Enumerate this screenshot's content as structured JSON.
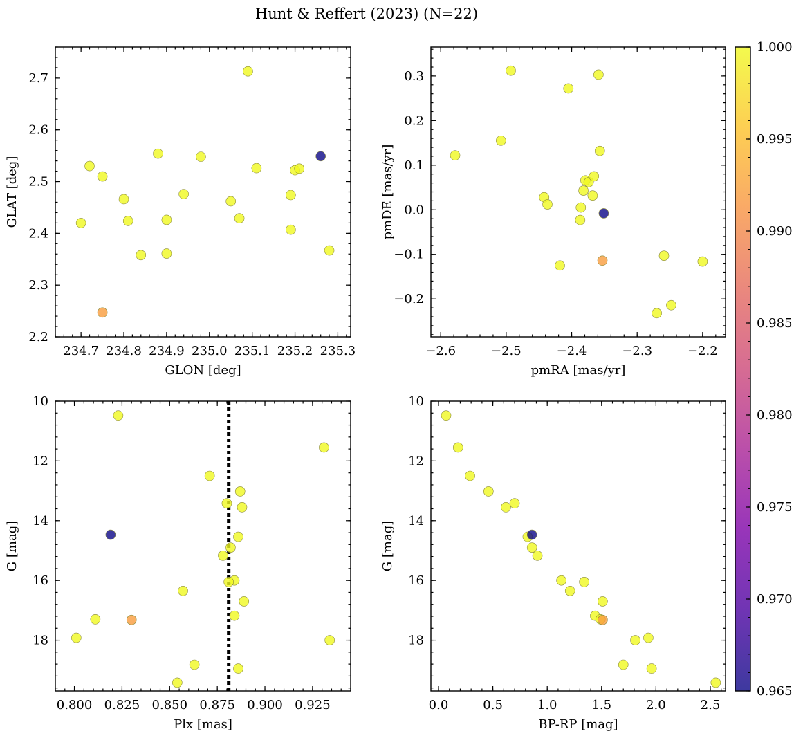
{
  "figure": {
    "title": "Hunt & Reffert (2023) (N=22)"
  },
  "colorbar": {
    "min": 0.965,
    "max": 1.0,
    "colormap": "plasma",
    "ticks": [
      0.965,
      0.97,
      0.975,
      0.98,
      0.985,
      0.99,
      0.995,
      1.0
    ],
    "tick_labels": [
      "0.965",
      "0.970",
      "0.975",
      "0.980",
      "0.985",
      "0.990",
      "0.995",
      "1.000"
    ]
  },
  "chart_data": [
    {
      "type": "scatter",
      "panel": "top-left",
      "xlabel": "GLON [deg]",
      "ylabel": "GLAT [deg]",
      "xlim": [
        234.64,
        235.33
      ],
      "ylim": [
        2.2,
        2.76
      ],
      "y_inverted": false,
      "xticks": [
        234.7,
        234.8,
        234.9,
        235.0,
        235.1,
        235.2,
        235.3
      ],
      "xtick_labels": [
        "234.7",
        "234.8",
        "234.9",
        "235.0",
        "235.1",
        "235.2",
        "235.3"
      ],
      "yticks": [
        2.2,
        2.3,
        2.4,
        2.5,
        2.6,
        2.7
      ],
      "ytick_labels": [
        "2.2",
        "2.3",
        "2.4",
        "2.5",
        "2.6",
        "2.7"
      ],
      "points": [
        {
          "x": 234.7,
          "y": 2.42,
          "c": 1.0
        },
        {
          "x": 234.72,
          "y": 2.53,
          "c": 1.0
        },
        {
          "x": 234.75,
          "y": 2.51,
          "c": 1.0
        },
        {
          "x": 234.75,
          "y": 2.247,
          "c": 0.992
        },
        {
          "x": 234.8,
          "y": 2.466,
          "c": 1.0
        },
        {
          "x": 234.81,
          "y": 2.424,
          "c": 1.0
        },
        {
          "x": 234.84,
          "y": 2.358,
          "c": 1.0
        },
        {
          "x": 234.88,
          "y": 2.554,
          "c": 1.0
        },
        {
          "x": 234.9,
          "y": 2.426,
          "c": 1.0
        },
        {
          "x": 234.9,
          "y": 2.361,
          "c": 1.0
        },
        {
          "x": 234.94,
          "y": 2.476,
          "c": 1.0
        },
        {
          "x": 234.98,
          "y": 2.548,
          "c": 1.0
        },
        {
          "x": 235.05,
          "y": 2.462,
          "c": 1.0
        },
        {
          "x": 235.07,
          "y": 2.429,
          "c": 1.0
        },
        {
          "x": 235.09,
          "y": 2.713,
          "c": 1.0
        },
        {
          "x": 235.11,
          "y": 2.526,
          "c": 1.0
        },
        {
          "x": 235.19,
          "y": 2.474,
          "c": 1.0
        },
        {
          "x": 235.19,
          "y": 2.407,
          "c": 1.0
        },
        {
          "x": 235.2,
          "y": 2.522,
          "c": 1.0
        },
        {
          "x": 235.21,
          "y": 2.525,
          "c": 1.0
        },
        {
          "x": 235.26,
          "y": 2.549,
          "c": 0.965
        },
        {
          "x": 235.28,
          "y": 2.367,
          "c": 1.0
        }
      ]
    },
    {
      "type": "scatter",
      "panel": "top-right",
      "xlabel": "pmRA [mas/yr]",
      "ylabel": "pmDE [mas/yr]",
      "xlim": [
        -2.615,
        -2.165
      ],
      "ylim": [
        -0.285,
        0.365
      ],
      "y_inverted": false,
      "xticks": [
        -2.6,
        -2.5,
        -2.4,
        -2.3,
        -2.2
      ],
      "xtick_labels": [
        "−2.6",
        "−2.5",
        "−2.4",
        "−2.3",
        "−2.2"
      ],
      "yticks": [
        -0.2,
        -0.1,
        0.0,
        0.1,
        0.2,
        0.3
      ],
      "ytick_labels": [
        "−0.2",
        "−0.1",
        "0.0",
        "0.1",
        "0.2",
        "0.3"
      ],
      "points": [
        {
          "x": -2.578,
          "y": 0.122,
          "c": 1.0
        },
        {
          "x": -2.493,
          "y": 0.312,
          "c": 1.0
        },
        {
          "x": -2.508,
          "y": 0.155,
          "c": 1.0
        },
        {
          "x": -2.405,
          "y": 0.272,
          "c": 1.0
        },
        {
          "x": -2.359,
          "y": 0.303,
          "c": 1.0
        },
        {
          "x": -2.357,
          "y": 0.132,
          "c": 1.0
        },
        {
          "x": -2.442,
          "y": 0.028,
          "c": 1.0
        },
        {
          "x": -2.437,
          "y": 0.012,
          "c": 1.0
        },
        {
          "x": -2.379,
          "y": 0.066,
          "c": 1.0
        },
        {
          "x": -2.374,
          "y": 0.062,
          "c": 1.0
        },
        {
          "x": -2.366,
          "y": 0.075,
          "c": 1.0
        },
        {
          "x": -2.382,
          "y": 0.043,
          "c": 1.0
        },
        {
          "x": -2.368,
          "y": 0.032,
          "c": 1.0
        },
        {
          "x": -2.386,
          "y": 0.005,
          "c": 1.0
        },
        {
          "x": -2.387,
          "y": -0.023,
          "c": 1.0
        },
        {
          "x": -2.351,
          "y": -0.008,
          "c": 0.965
        },
        {
          "x": -2.418,
          "y": -0.125,
          "c": 1.0
        },
        {
          "x": -2.353,
          "y": -0.114,
          "c": 0.992
        },
        {
          "x": -2.259,
          "y": -0.103,
          "c": 1.0
        },
        {
          "x": -2.2,
          "y": -0.116,
          "c": 1.0
        },
        {
          "x": -2.248,
          "y": -0.214,
          "c": 1.0
        },
        {
          "x": -2.27,
          "y": -0.232,
          "c": 1.0
        }
      ]
    },
    {
      "type": "scatter",
      "panel": "bottom-left",
      "xlabel": "Plx [mas]",
      "ylabel": "G [mag]",
      "xlim": [
        0.79,
        0.945
      ],
      "ylim": [
        19.7,
        10.0
      ],
      "y_inverted": true,
      "xticks": [
        0.8,
        0.825,
        0.85,
        0.875,
        0.9,
        0.925
      ],
      "xtick_labels": [
        "0.800",
        "0.825",
        "0.850",
        "0.875",
        "0.900",
        "0.925"
      ],
      "yticks": [
        10,
        12,
        14,
        16,
        18
      ],
      "ytick_labels": [
        "10",
        "12",
        "14",
        "16",
        "18"
      ],
      "vline": {
        "x": 0.881,
        "style": "dotted"
      },
      "points": [
        {
          "x": 0.823,
          "y": 10.48,
          "c": 1.0
        },
        {
          "x": 0.931,
          "y": 11.55,
          "c": 1.0
        },
        {
          "x": 0.871,
          "y": 12.5,
          "c": 1.0
        },
        {
          "x": 0.887,
          "y": 13.02,
          "c": 1.0
        },
        {
          "x": 0.88,
          "y": 13.42,
          "c": 1.0
        },
        {
          "x": 0.888,
          "y": 13.55,
          "c": 1.0
        },
        {
          "x": 0.819,
          "y": 14.47,
          "c": 0.965
        },
        {
          "x": 0.886,
          "y": 14.54,
          "c": 1.0
        },
        {
          "x": 0.882,
          "y": 14.9,
          "c": 1.0
        },
        {
          "x": 0.878,
          "y": 15.17,
          "c": 1.0
        },
        {
          "x": 0.884,
          "y": 16.0,
          "c": 1.0
        },
        {
          "x": 0.881,
          "y": 16.05,
          "c": 1.0
        },
        {
          "x": 0.857,
          "y": 16.35,
          "c": 1.0
        },
        {
          "x": 0.889,
          "y": 16.7,
          "c": 1.0
        },
        {
          "x": 0.884,
          "y": 17.18,
          "c": 1.0
        },
        {
          "x": 0.811,
          "y": 17.3,
          "c": 1.0
        },
        {
          "x": 0.83,
          "y": 17.32,
          "c": 0.992
        },
        {
          "x": 0.801,
          "y": 17.92,
          "c": 1.0
        },
        {
          "x": 0.934,
          "y": 18.0,
          "c": 1.0
        },
        {
          "x": 0.863,
          "y": 18.82,
          "c": 1.0
        },
        {
          "x": 0.886,
          "y": 18.95,
          "c": 1.0
        },
        {
          "x": 0.854,
          "y": 19.42,
          "c": 1.0
        }
      ]
    },
    {
      "type": "scatter",
      "panel": "bottom-right",
      "xlabel": "BP-RP [mag]",
      "ylabel": "G [mag]",
      "xlim": [
        -0.07,
        2.64
      ],
      "ylim": [
        19.7,
        10.0
      ],
      "y_inverted": true,
      "xticks": [
        0.0,
        0.5,
        1.0,
        1.5,
        2.0,
        2.5
      ],
      "xtick_labels": [
        "0.0",
        "0.5",
        "1.0",
        "1.5",
        "2.0",
        "2.5"
      ],
      "yticks": [
        10,
        12,
        14,
        16,
        18
      ],
      "ytick_labels": [
        "10",
        "12",
        "14",
        "16",
        "18"
      ],
      "points": [
        {
          "x": 0.07,
          "y": 10.48,
          "c": 1.0
        },
        {
          "x": 0.18,
          "y": 11.55,
          "c": 1.0
        },
        {
          "x": 0.29,
          "y": 12.5,
          "c": 1.0
        },
        {
          "x": 0.46,
          "y": 13.02,
          "c": 1.0
        },
        {
          "x": 0.7,
          "y": 13.42,
          "c": 1.0
        },
        {
          "x": 0.62,
          "y": 13.55,
          "c": 1.0
        },
        {
          "x": 0.86,
          "y": 14.47,
          "c": 0.965
        },
        {
          "x": 0.82,
          "y": 14.54,
          "c": 1.0
        },
        {
          "x": 0.86,
          "y": 14.9,
          "c": 1.0
        },
        {
          "x": 0.91,
          "y": 15.17,
          "c": 1.0
        },
        {
          "x": 1.13,
          "y": 16.0,
          "c": 1.0
        },
        {
          "x": 1.34,
          "y": 16.05,
          "c": 1.0
        },
        {
          "x": 1.21,
          "y": 16.35,
          "c": 1.0
        },
        {
          "x": 1.51,
          "y": 16.7,
          "c": 1.0
        },
        {
          "x": 1.44,
          "y": 17.18,
          "c": 1.0
        },
        {
          "x": 1.51,
          "y": 17.32,
          "c": 0.992
        },
        {
          "x": 1.49,
          "y": 17.3,
          "c": 1.0
        },
        {
          "x": 1.81,
          "y": 18.0,
          "c": 1.0
        },
        {
          "x": 1.93,
          "y": 17.92,
          "c": 1.0
        },
        {
          "x": 1.7,
          "y": 18.82,
          "c": 1.0
        },
        {
          "x": 1.96,
          "y": 18.95,
          "c": 1.0
        },
        {
          "x": 2.55,
          "y": 19.42,
          "c": 1.0
        }
      ]
    }
  ]
}
